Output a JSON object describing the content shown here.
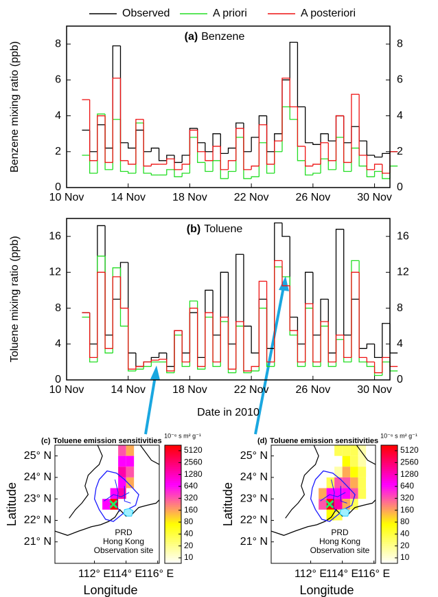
{
  "chart_data": [
    {
      "type": "step",
      "panel_label": "(a)",
      "title": "Benzene",
      "ylabel": "Benzene mixing ratio (ppb)",
      "legend": "top",
      "x": [
        11,
        11.5,
        12,
        12.5,
        13,
        13.5,
        14,
        14.5,
        15,
        15.5,
        16,
        16.5,
        17,
        17.5,
        18,
        18.5,
        19,
        19.5,
        20,
        20.5,
        21,
        21.5,
        22,
        22.5,
        23,
        23.5,
        24,
        24.5,
        25,
        25.5,
        26,
        26.5,
        27,
        27.5,
        28,
        28.5,
        29,
        29.5,
        30,
        30.5,
        31
      ],
      "xlim": [
        10,
        31
      ],
      "xticks": [
        {
          "value": 10,
          "label": "10 Nov"
        },
        {
          "value": 14,
          "label": "14 Nov"
        },
        {
          "value": 18,
          "label": "18 Nov"
        },
        {
          "value": 22,
          "label": "22 Nov"
        },
        {
          "value": 26,
          "label": "26 Nov"
        },
        {
          "value": 30,
          "label": "30 Nov"
        }
      ],
      "ylim": [
        0,
        9
      ],
      "yticks": [
        0,
        2,
        4,
        6,
        8
      ],
      "series": [
        {
          "name": "Observed",
          "color": "#000000",
          "values": [
            3.2,
            2.0,
            3.5,
            2.2,
            7.9,
            2.5,
            2.2,
            3.2,
            2.0,
            2.2,
            1.5,
            1.8,
            1.4,
            1.8,
            3.3,
            2.5,
            2.0,
            3.0,
            1.9,
            2.2,
            3.6,
            2.0,
            2.8,
            4.0,
            2.0,
            3.0,
            6.0,
            8.1,
            4.5,
            2.5,
            2.4,
            3.0,
            2.6,
            4.0,
            2.5,
            3.4,
            2.6,
            1.8,
            1.7,
            1.9,
            2.0
          ]
        },
        {
          "name": "A priori",
          "color": "#22dd22",
          "values": [
            1.8,
            0.8,
            4.1,
            1.0,
            3.8,
            0.9,
            0.8,
            3.6,
            0.8,
            0.7,
            0.7,
            1.0,
            0.6,
            0.8,
            2.8,
            1.4,
            0.9,
            1.5,
            0.5,
            0.9,
            2.8,
            0.5,
            0.6,
            2.5,
            0.8,
            2.0,
            4.5,
            3.8,
            1.5,
            0.7,
            0.8,
            1.6,
            1.0,
            2.8,
            0.9,
            2.2,
            1.2,
            0.6,
            0.9,
            0.5,
            1.2
          ]
        },
        {
          "name": "A posteriori",
          "color": "#ee1111",
          "values": [
            4.9,
            1.5,
            4.0,
            1.4,
            6.1,
            1.5,
            1.3,
            3.8,
            1.2,
            1.3,
            1.3,
            1.6,
            1.0,
            1.3,
            3.2,
            2.0,
            1.5,
            2.3,
            1.0,
            1.5,
            3.3,
            1.0,
            1.2,
            3.5,
            1.3,
            2.6,
            6.1,
            4.5,
            2.3,
            1.2,
            1.3,
            2.5,
            1.5,
            4.0,
            1.4,
            5.2,
            1.8,
            1.0,
            1.3,
            0.8,
            2.0
          ]
        }
      ]
    },
    {
      "type": "step",
      "panel_label": "(b)",
      "title": "Toluene",
      "ylabel": "Toluene mixing ratio (ppb)",
      "xlabel": "Date in 2010",
      "x": [
        11,
        11.5,
        12,
        12.5,
        13,
        13.5,
        14,
        14.5,
        15,
        15.5,
        16,
        16.5,
        17,
        17.5,
        18,
        18.5,
        19,
        19.5,
        20,
        20.5,
        21,
        21.5,
        22,
        22.5,
        23,
        23.5,
        24,
        24.5,
        25,
        25.5,
        26,
        26.5,
        27,
        27.5,
        28,
        28.5,
        29,
        29.5,
        30,
        30.5,
        31
      ],
      "xlim": [
        10,
        31
      ],
      "xticks": [
        {
          "value": 10,
          "label": "10 Nov"
        },
        {
          "value": 14,
          "label": "14 Nov"
        },
        {
          "value": 18,
          "label": "18 Nov"
        },
        {
          "value": 22,
          "label": "22 Nov"
        },
        {
          "value": 26,
          "label": "26 Nov"
        },
        {
          "value": 30,
          "label": "30 Nov"
        }
      ],
      "ylim": [
        0,
        18
      ],
      "yticks": [
        0,
        4,
        8,
        12,
        16
      ],
      "series": [
        {
          "color": "#000000",
          "values": [
            7.5,
            4.0,
            17.2,
            5.0,
            9.0,
            13.1,
            3.0,
            1.5,
            2.0,
            2.5,
            3.0,
            1.5,
            5.5,
            3.0,
            7.5,
            2.5,
            10.0,
            5.0,
            12.0,
            4.0,
            14.0,
            6.0,
            3.0,
            9.0,
            3.5,
            17.5,
            16.0,
            7.0,
            4.0,
            12.0,
            5.0,
            9.0,
            3.0,
            16.8,
            5.0,
            9.0,
            3.5,
            4.0,
            2.5,
            6.3,
            3.0
          ]
        },
        {
          "color": "#22dd22",
          "values": [
            7.0,
            2.0,
            13.8,
            3.0,
            12.5,
            6.0,
            1.0,
            1.2,
            1.5,
            2.0,
            2.0,
            0.8,
            5.0,
            1.5,
            8.8,
            1.2,
            7.0,
            1.5,
            6.5,
            0.8,
            6.0,
            0.8,
            1.0,
            8.0,
            1.5,
            12.6,
            11.5,
            5.0,
            1.5,
            8.0,
            1.5,
            6.0,
            1.5,
            4.5,
            2.0,
            13.3,
            2.0,
            1.5,
            0.5,
            2.0,
            1.0
          ]
        },
        {
          "color": "#ee1111",
          "values": [
            7.5,
            2.5,
            12.0,
            3.5,
            11.5,
            8.0,
            1.2,
            1.5,
            2.0,
            2.2,
            2.3,
            1.0,
            5.5,
            2.0,
            8.0,
            1.5,
            7.5,
            2.0,
            7.0,
            1.2,
            6.5,
            1.0,
            1.5,
            11.0,
            2.0,
            13.3,
            10.5,
            5.5,
            2.0,
            8.5,
            2.0,
            6.5,
            2.0,
            5.0,
            2.5,
            12.0,
            2.5,
            2.0,
            0.8,
            2.5,
            1.5
          ]
        }
      ]
    },
    {
      "type": "map",
      "panel_label": "(c)",
      "title": "Toluene emission sensitivities",
      "xlabel": "Longitude",
      "ylabel": "Latitude",
      "xlim": [
        109.5,
        116.1
      ],
      "ylim": [
        20,
        25.5
      ],
      "xticks": [
        {
          "value": 112,
          "label": "112° E"
        },
        {
          "value": 114,
          "label": "114° E"
        },
        {
          "value": 116,
          "label": "116° E"
        }
      ],
      "yticks": [
        {
          "value": 21,
          "label": "21° N"
        },
        {
          "value": 22,
          "label": "22° N"
        },
        {
          "value": 23,
          "label": "23° N"
        },
        {
          "value": 24,
          "label": "24° N"
        },
        {
          "value": 25,
          "label": "25° N"
        }
      ],
      "cells": {
        "x": [
          113.75,
          114.25,
          113.75,
          114.25,
          113.75,
          114.25,
          113.75,
          114.25,
          113.25,
          113.75,
          113.25,
          112.75
        ],
        "y": [
          25.25,
          25.25,
          24.75,
          24.75,
          24.25,
          24.25,
          23.75,
          23.75,
          23.25,
          23.25,
          22.75,
          22.75
        ],
        "values": [
          320,
          160,
          640,
          640,
          1280,
          320,
          640,
          160,
          640,
          1280,
          5120,
          640
        ]
      },
      "colorbar": {
        "label": "10⁻⁶ s m² g⁻¹",
        "scale": "log",
        "ticks": [
          10,
          20,
          40,
          80,
          160,
          320,
          640,
          1280,
          2560,
          5120
        ]
      },
      "annotations": [
        {
          "text": "PRD",
          "color": "#1a1aff"
        },
        {
          "text": "Hong Kong",
          "color": "#22ccff"
        },
        {
          "text": "Observation site",
          "color": "#22ee66"
        }
      ]
    },
    {
      "type": "map",
      "panel_label": "(d)",
      "title": "Toluene emission sensitivities",
      "xlabel": "Longitude",
      "ylabel": "Latitude",
      "xlim": [
        109.5,
        116.1
      ],
      "ylim": [
        20,
        25.5
      ],
      "xticks": [
        {
          "value": 112,
          "label": "112° E"
        },
        {
          "value": 114,
          "label": "114° E"
        },
        {
          "value": 116,
          "label": "116° E"
        }
      ],
      "yticks": [
        {
          "value": 21,
          "label": "21° N"
        },
        {
          "value": 22,
          "label": "22° N"
        },
        {
          "value": 23,
          "label": "23° N"
        },
        {
          "value": 24,
          "label": "24° N"
        },
        {
          "value": 25,
          "label": "25° N"
        }
      ],
      "cells": {
        "x": [
          113.75,
          114.25,
          114.75,
          115.25,
          110.75,
          111.25,
          114.25,
          114.75,
          115.25,
          111.25,
          111.75,
          113.75,
          114.25,
          114.75,
          115.25,
          113.25,
          113.75,
          114.25,
          114.75,
          115.25,
          115.75,
          112.75,
          113.25,
          113.75,
          114.25,
          114.75,
          115.25,
          112.75,
          113.25,
          113.75,
          114.25,
          114.75,
          113.25,
          113.75
        ],
        "y": [
          25.25,
          25.25,
          25.25,
          25.25,
          24.75,
          24.75,
          24.75,
          24.75,
          24.75,
          24.25,
          24.25,
          24.25,
          24.25,
          24.25,
          24.25,
          23.75,
          23.75,
          23.75,
          23.75,
          23.75,
          23.75,
          23.25,
          23.25,
          23.25,
          23.25,
          23.25,
          23.25,
          22.75,
          22.75,
          22.75,
          22.75,
          22.75,
          22.25,
          22.25
        ],
        "values": [
          40,
          40,
          40,
          20,
          10,
          10,
          80,
          40,
          20,
          10,
          10,
          20,
          160,
          80,
          40,
          40,
          320,
          320,
          160,
          40,
          10,
          160,
          640,
          640,
          640,
          320,
          40,
          320,
          5120,
          1280,
          160,
          40,
          80,
          40
        ]
      },
      "colorbar": {
        "label": "10⁻⁶ s m² g⁻¹",
        "scale": "log",
        "ticks": [
          10,
          20,
          40,
          80,
          160,
          320,
          640,
          1280,
          2560,
          5120
        ]
      },
      "annotations": [
        {
          "text": "PRD",
          "color": "#1a1aff"
        },
        {
          "text": "Hong Kong",
          "color": "#22ccff"
        },
        {
          "text": "Observation site",
          "color": "#22ee66"
        }
      ]
    }
  ]
}
